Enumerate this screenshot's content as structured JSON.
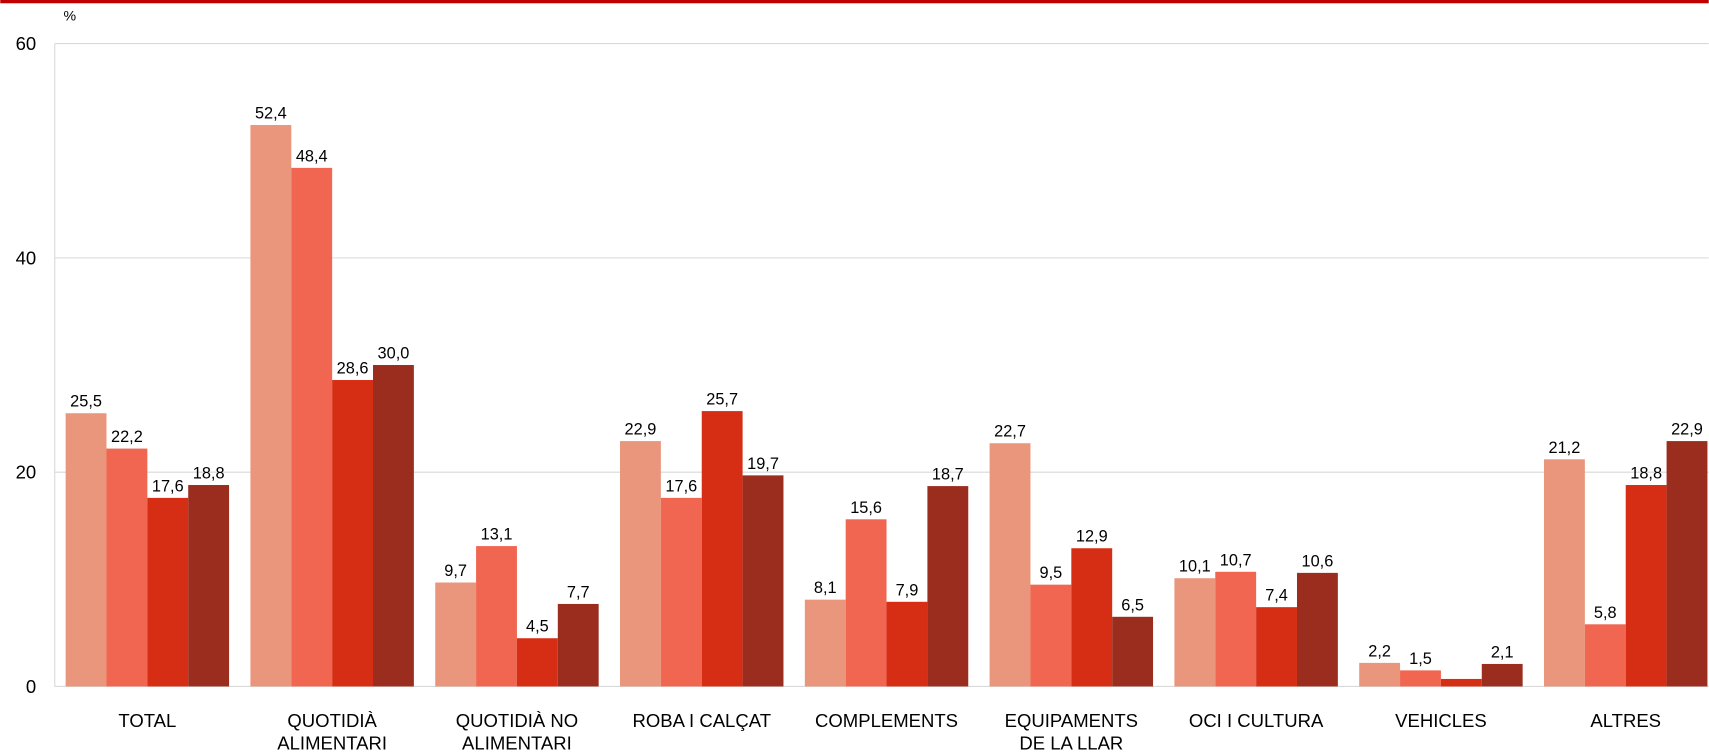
{
  "chart_data": {
    "type": "bar",
    "ylabel": "%",
    "categories": [
      "TOTAL",
      "QUOTIDIÀ ALIMENTARI",
      "QUOTIDIÀ NO ALIMENTARI",
      "ROBA I CALÇAT",
      "COMPLEMENTS",
      "EQUIPAMENTS DE LA LLAR",
      "OCI I CULTURA",
      "VEHICLES",
      "ALTRES"
    ],
    "series": [
      {
        "color": "#e9967c",
        "values": [
          25.5,
          52.4,
          9.7,
          22.9,
          8.1,
          22.7,
          10.1,
          2.2,
          21.2
        ],
        "value_labels": [
          "25,5",
          "52,4",
          "9,7",
          "22,9",
          "8,1",
          "22,7",
          "10,1",
          "2,2",
          "21,2"
        ]
      },
      {
        "color": "#f06650",
        "values": [
          22.2,
          48.4,
          13.1,
          17.6,
          15.6,
          9.5,
          10.7,
          1.5,
          5.8
        ],
        "value_labels": [
          "22,2",
          "48,4",
          "13,1",
          "17,6",
          "15,6",
          "9,5",
          "10,7",
          "1,5",
          "5,8"
        ]
      },
      {
        "color": "#d62e14",
        "values": [
          17.6,
          28.6,
          4.5,
          25.7,
          7.9,
          12.9,
          7.4,
          0.7,
          18.8
        ],
        "value_labels": [
          "17,6",
          "28,6",
          "4,5",
          "25,7",
          "7,9",
          "12,9",
          "7,4",
          null,
          "18,8"
        ]
      },
      {
        "color": "#9b2d1e",
        "values": [
          18.8,
          30.0,
          7.7,
          19.7,
          18.7,
          6.5,
          10.6,
          2.1,
          22.9
        ],
        "value_labels": [
          "18,8",
          "30,0",
          "7,7",
          "19,7",
          "18,7",
          "6,5",
          "10,6",
          "2,1",
          "22,9"
        ]
      }
    ],
    "ylim": [
      0,
      60
    ],
    "yticks": [
      0,
      20,
      40,
      60
    ],
    "grid": true
  }
}
